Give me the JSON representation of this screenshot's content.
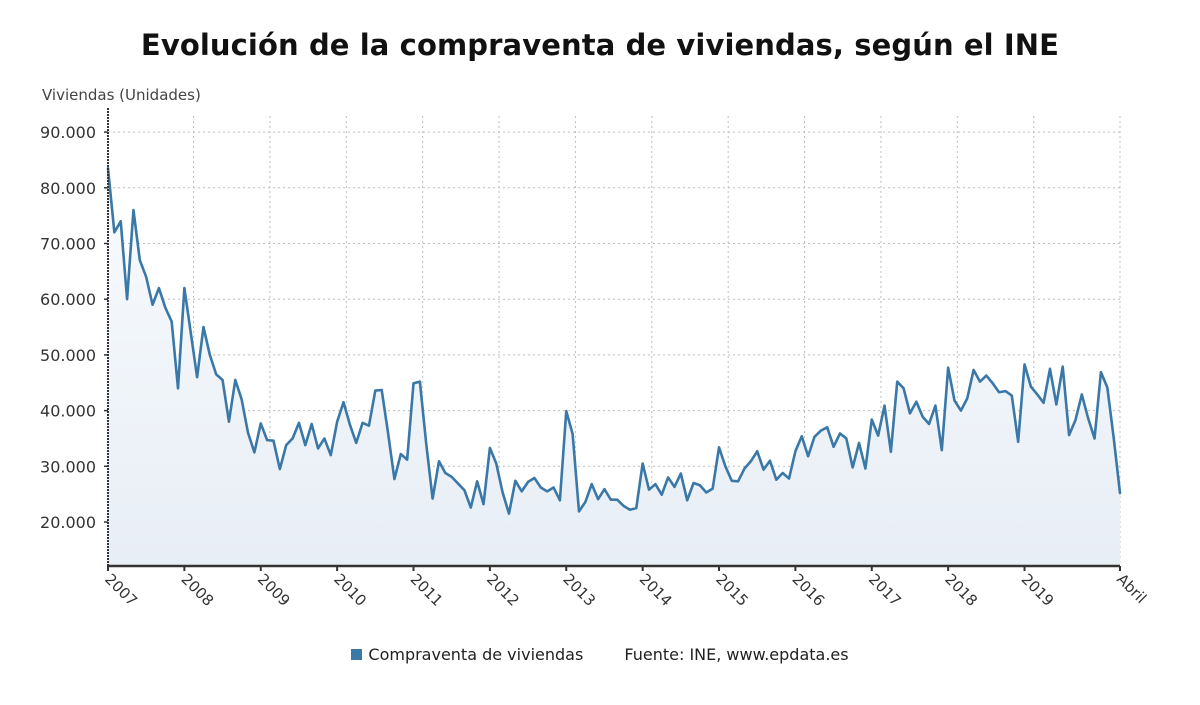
{
  "chart_data": {
    "type": "area",
    "title": "Evolución de la compraventa de viviendas, según el INE",
    "ylabel": "Viviendas (Unidades)",
    "xlabel": "",
    "ylim": [
      12000,
      92000
    ],
    "yticks": [
      20000,
      30000,
      40000,
      50000,
      60000,
      70000,
      80000,
      90000
    ],
    "ytick_labels": [
      "20.000",
      "30.000",
      "40.000",
      "50.000",
      "60.000",
      "70.000",
      "80.000",
      "90.000"
    ],
    "xtick_labels": [
      "2007",
      "2008",
      "2009",
      "2010",
      "2011",
      "2012",
      "2013",
      "2014",
      "2015",
      "2016",
      "2017",
      "2018",
      "2019",
      "Abril"
    ],
    "x_start": "2007-01",
    "x_end": "2020-04",
    "frequency": "monthly",
    "grid": true,
    "legend_position": "bottom",
    "series": [
      {
        "name": "Compraventa de viviendas",
        "color": "#3a78a8",
        "values": [
          83500,
          72000,
          74000,
          60000,
          76000,
          67000,
          64000,
          59000,
          62000,
          58500,
          56000,
          44000,
          62000,
          54000,
          46000,
          55000,
          50000,
          46500,
          45500,
          38000,
          45500,
          42000,
          36000,
          32500,
          37700,
          34700,
          34600,
          29500,
          33800,
          35000,
          37800,
          33800,
          37600,
          33200,
          35000,
          32000,
          38000,
          41500,
          37500,
          34200,
          37800,
          37300,
          43600,
          43700,
          36000,
          27700,
          32200,
          31200,
          44900,
          45200,
          34000,
          24200,
          30900,
          28800,
          28100,
          26900,
          25700,
          22600,
          27300,
          23200,
          33300,
          30500,
          25300,
          21500,
          27400,
          25500,
          27200,
          27900,
          26200,
          25500,
          26200,
          23900,
          39900,
          35800,
          21900,
          23600,
          26800,
          24100,
          25900,
          24000,
          24000,
          22900,
          22200,
          22500,
          30500,
          25800,
          26800,
          24900,
          28000,
          26300,
          28700,
          23900,
          27000,
          26600,
          25300,
          26000,
          33400,
          30000,
          27400,
          27300,
          29600,
          30900,
          32700,
          29400,
          31000,
          27600,
          28800,
          27800,
          32700,
          35400,
          31800,
          35300,
          36400,
          37000,
          33500,
          35900,
          35000,
          29800,
          34200,
          29600,
          38400,
          35500,
          40900,
          32600,
          45200,
          44000,
          39500,
          41600,
          38900,
          37600,
          40900,
          32900,
          47700,
          41800,
          40000,
          42200,
          47300,
          45200,
          46300,
          44900,
          43300,
          43500,
          42700,
          34400,
          48300,
          44300,
          42900,
          41400,
          47500,
          41100,
          47900,
          35600,
          38300,
          42900,
          38600,
          35000,
          46900,
          44200,
          35200,
          25200
        ]
      }
    ],
    "source": "Fuente: INE, www.epdata.es"
  },
  "colors": {
    "line": "#3a78a8",
    "area_top": "#f6f9fc",
    "area_bottom": "#e9eff7",
    "grid": "#bdbdbd",
    "axis": "#333333"
  }
}
